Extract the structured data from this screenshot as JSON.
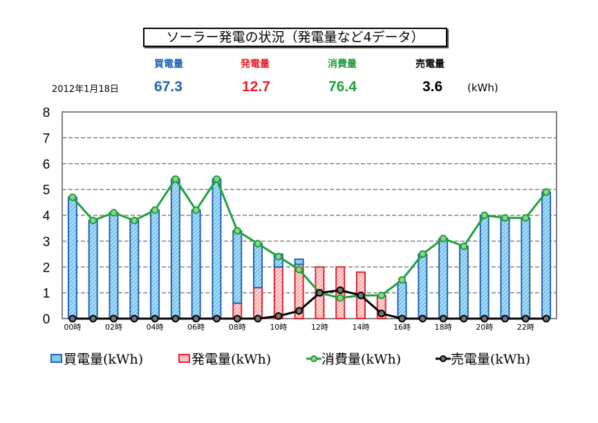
{
  "header": {
    "title": "ソーラー発電の状況（発電量など4データ）",
    "date": "2012年1月18日",
    "unit": "(kWh)",
    "summary": [
      {
        "label": "買電量",
        "value": "67.3",
        "color": "#1f63b5"
      },
      {
        "label": "発電量",
        "value": "12.7",
        "color": "#e8202a"
      },
      {
        "label": "消費量",
        "value": "76.4",
        "color": "#1ea03c"
      },
      {
        "label": "売電量",
        "value": "3.6",
        "color": "#000000"
      }
    ]
  },
  "chart_data": {
    "type": "bar",
    "stacked": true,
    "ylim": [
      0,
      8
    ],
    "yticks": [
      "0",
      "1",
      "2",
      "3",
      "4",
      "5",
      "6",
      "7",
      "8"
    ],
    "x": [
      0,
      1,
      2,
      3,
      4,
      5,
      6,
      7,
      8,
      9,
      10,
      11,
      12,
      13,
      14,
      15,
      16,
      17,
      18,
      19,
      20,
      21,
      22,
      23
    ],
    "xtick_labels": [
      "00時",
      "02時",
      "04時",
      "06時",
      "08時",
      "10時",
      "12時",
      "14時",
      "16時",
      "18時",
      "20時",
      "22時"
    ],
    "grid": "horizontal dashed",
    "legend_position": "bottom",
    "series": [
      {
        "name": "買電量(kWh)",
        "kind": "bar",
        "color": "#1f63b5",
        "values": [
          4.7,
          3.8,
          4.1,
          3.8,
          4.2,
          5.4,
          4.2,
          5.4,
          2.8,
          1.7,
          0.5,
          0.2,
          0,
          0,
          0,
          0,
          1.4,
          2.5,
          3.1,
          2.8,
          4.0,
          3.9,
          3.9,
          4.9
        ]
      },
      {
        "name": "発電量(kWh)",
        "kind": "bar",
        "color": "#e8202a",
        "values": [
          0,
          0,
          0,
          0,
          0,
          0,
          0,
          0,
          0.6,
          1.2,
          2.0,
          2.1,
          2.0,
          2.0,
          1.8,
          0.9,
          0,
          0,
          0,
          0,
          0,
          0,
          0,
          0
        ]
      },
      {
        "name": "消費量(kWh)",
        "kind": "line",
        "color": "#1ea03c",
        "values": [
          4.7,
          3.8,
          4.1,
          3.8,
          4.2,
          5.4,
          4.2,
          5.4,
          3.4,
          2.9,
          2.4,
          1.9,
          1.0,
          0.8,
          0.9,
          0.9,
          1.5,
          2.5,
          3.1,
          2.8,
          4.0,
          3.9,
          3.9,
          4.9
        ]
      },
      {
        "name": "売電量(kWh)",
        "kind": "line",
        "color": "#000000",
        "values": [
          0,
          0,
          0,
          0,
          0,
          0,
          0,
          0,
          0,
          0,
          0.1,
          0.3,
          1.0,
          1.1,
          0.9,
          0.2,
          0,
          0,
          0,
          0,
          0,
          0,
          0,
          0
        ]
      }
    ]
  }
}
